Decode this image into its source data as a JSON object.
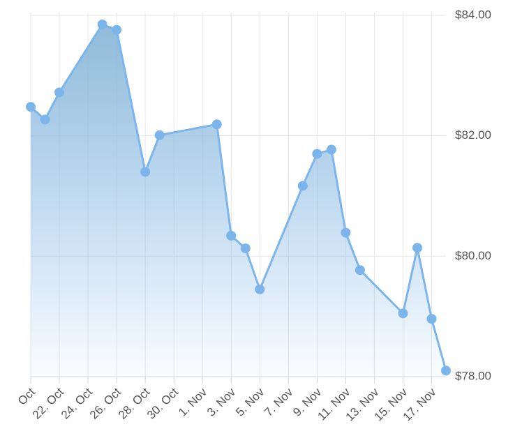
{
  "chart_data": {
    "type": "area",
    "x": [
      "20. Oct",
      "21. Oct",
      "22. Oct",
      "25. Oct",
      "26. Oct",
      "28. Oct",
      "29. Oct",
      "2. Nov",
      "3. Nov",
      "4. Nov",
      "5. Nov",
      "8. Nov",
      "9. Nov",
      "10. Nov",
      "11. Nov",
      "12. Nov",
      "15. Nov",
      "16. Nov",
      "17. Nov",
      "18. Nov"
    ],
    "series": [
      {
        "color": "#7cb5ec",
        "values": [
          82.48,
          82.27,
          82.72,
          83.85,
          83.76,
          81.4,
          82.01,
          82.19,
          80.34,
          80.13,
          79.45,
          81.17,
          81.7,
          81.77,
          80.39,
          79.77,
          79.05,
          80.14,
          78.96,
          78.1
        ]
      }
    ],
    "xlim": [
      "20. Oct",
      "18. Nov"
    ],
    "xticks": [
      {
        "value": "20. Oct",
        "label": "Oct"
      },
      "22. Oct",
      "24. Oct",
      "26. Oct",
      "28. Oct",
      "30. Oct",
      "1. Nov",
      "3. Nov",
      "5. Nov",
      "7. Nov",
      "9. Nov",
      "11. Nov",
      "13. Nov",
      "15. Nov",
      "17. Nov"
    ],
    "ylim": [
      78,
      84
    ],
    "yticks": [
      {
        "value": 78,
        "label": "$78.00"
      },
      {
        "value": 80,
        "label": "$80.00"
      },
      {
        "value": 82,
        "label": "$82.00"
      },
      {
        "value": 84,
        "label": "$84.00"
      }
    ],
    "grid": true
  }
}
